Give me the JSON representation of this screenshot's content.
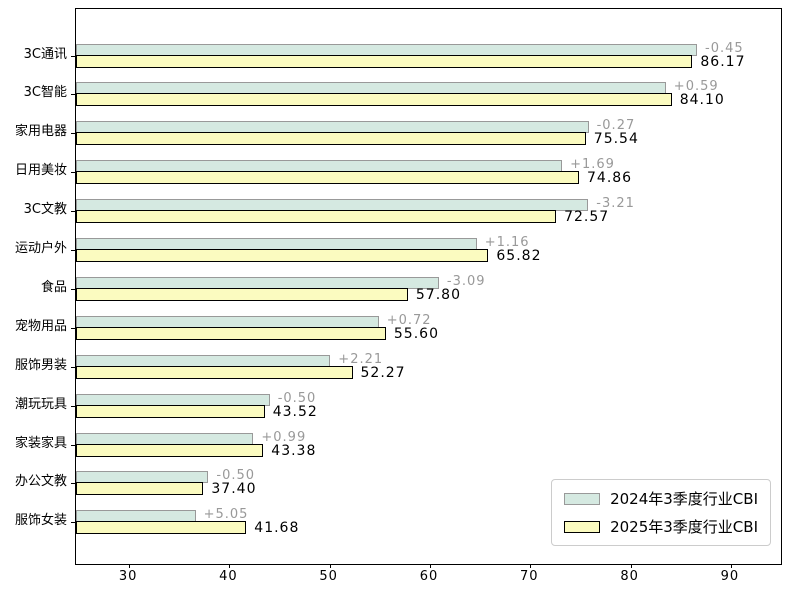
{
  "chart_data": {
    "type": "bar",
    "orientation": "horizontal",
    "title": "",
    "xlabel": "",
    "ylabel": "",
    "xlim": [
      24.7,
      95.0
    ],
    "xticks": [
      30,
      40,
      50,
      60,
      70,
      80,
      90
    ],
    "grid": false,
    "legend_position": "lower right",
    "categories": [
      "3C通讯",
      "3C智能",
      "家用电器",
      "日用美妆",
      "3C文教",
      "运动户外",
      "食品",
      "宠物用品",
      "服饰男装",
      "潮玩玩具",
      "家装家具",
      "办公文教",
      "服饰女装"
    ],
    "series": [
      {
        "name": "2024年3季度行业CBI",
        "color": "#d5e9e1",
        "edge_color": "#999999",
        "values": [
          86.62,
          83.51,
          75.81,
          73.17,
          75.78,
          64.66,
          60.89,
          54.88,
          50.06,
          44.02,
          42.39,
          37.9,
          36.63
        ]
      },
      {
        "name": "2025年3季度行业CBI",
        "color": "#fbfbc0",
        "edge_color": "#000000",
        "values": [
          86.17,
          84.1,
          75.54,
          74.86,
          72.57,
          65.82,
          57.8,
          55.6,
          52.27,
          43.52,
          43.38,
          37.4,
          41.68
        ]
      }
    ],
    "bar_labels": {
      "change": {
        "color": "#999999",
        "values": [
          "-0.45",
          "+0.59",
          "-0.27",
          "+1.69",
          "-3.21",
          "+1.16",
          "-3.09",
          "+0.72",
          "+2.21",
          "-0.50",
          "+0.99",
          "-0.50",
          "+5.05"
        ]
      },
      "value": {
        "color": "#000000",
        "values": [
          "86.17",
          "84.10",
          "75.54",
          "74.86",
          "72.57",
          "65.82",
          "57.80",
          "55.60",
          "52.27",
          "43.52",
          "43.38",
          "37.40",
          "41.68"
        ]
      }
    },
    "colors": {
      "axis_frame": "#000000",
      "tick_label": "#000000",
      "legend_border": "#cccccc"
    }
  }
}
